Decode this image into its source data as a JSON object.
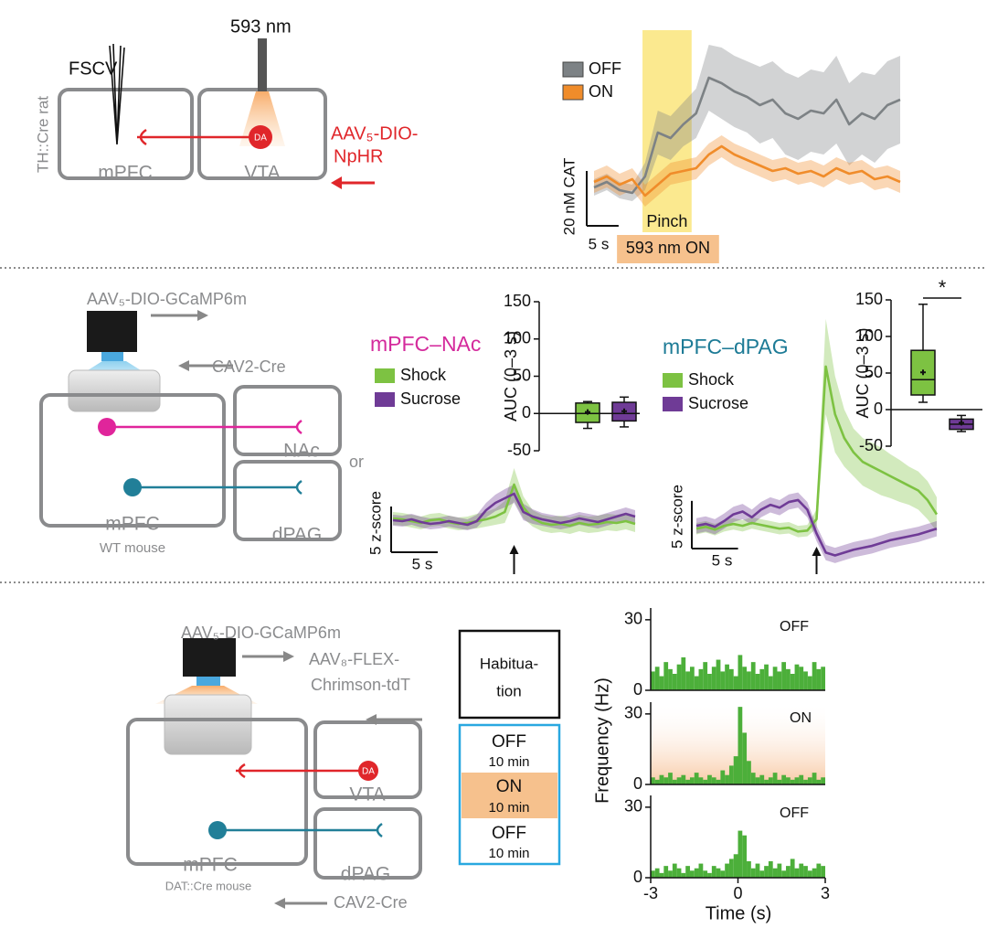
{
  "diagram_top": {
    "fscv": "FSCV",
    "laser": "593 nm",
    "animal": "TH::Cre rat",
    "regions": [
      "mPFC",
      "VTA"
    ],
    "cell": "DA",
    "virus": [
      "AAV₅-DIO-",
      "NpHR"
    ]
  },
  "diagram_middle": {
    "virus": "AAV₅-DIO-GCaMP6m",
    "retro": "CAV2-Cre",
    "regions": [
      "mPFC",
      "NAc",
      "dPAG"
    ],
    "animal": "WT mouse",
    "or": "or"
  },
  "diagram_bottom": {
    "virus": "AAV₅-DIO-GCaMP6m",
    "opsin": [
      "AAV₈-FLEX-",
      "Chrimson-tdT"
    ],
    "regions": [
      "mPFC",
      "VTA",
      "dPAG"
    ],
    "cell": "DA",
    "animal": "DAT::Cre mouse",
    "retro": "CAV2-Cre"
  },
  "protocol": {
    "habituation": [
      "Habitua-",
      "tion"
    ],
    "phases": [
      [
        "OFF",
        "10 min"
      ],
      [
        "ON",
        "10 min"
      ],
      [
        "OFF",
        "10 min"
      ]
    ]
  },
  "chart_data": [
    {
      "type": "line",
      "x": [
        0,
        2,
        4,
        6,
        8,
        10,
        12,
        14,
        16,
        18,
        20,
        22,
        24,
        26,
        28,
        30,
        32,
        34,
        36,
        38,
        40,
        42,
        44,
        46,
        48
      ],
      "xlim": [
        0,
        48
      ],
      "ylim": [
        -15,
        55
      ],
      "series": [
        {
          "name": "OFF",
          "color": "#7d8285",
          "values": [
            0,
            2,
            -1,
            -2,
            4,
            20,
            18,
            23,
            27,
            40,
            38,
            35,
            33,
            30,
            32,
            27,
            25,
            28,
            27,
            32,
            23,
            27,
            25,
            30,
            32
          ],
          "error": [
            3,
            3,
            3,
            3,
            5,
            8,
            8,
            8,
            9,
            12,
            13,
            13,
            13,
            14,
            14,
            15,
            15,
            15,
            15,
            16,
            15,
            15,
            16,
            16,
            16
          ]
        },
        {
          "name": "ON",
          "color": "#f08c2a",
          "values": [
            2,
            4,
            1,
            3,
            -3,
            1,
            5,
            6,
            7,
            12,
            15,
            12,
            10,
            8,
            6,
            7,
            5,
            6,
            4,
            7,
            5,
            6,
            3,
            4,
            2
          ],
          "error": [
            4,
            4,
            4,
            4,
            4,
            4,
            4,
            4,
            4,
            4,
            4,
            4,
            4,
            4,
            4,
            4,
            4,
            4,
            4,
            4,
            4,
            4,
            4,
            4,
            4
          ]
        }
      ],
      "legend": "upper left",
      "annotations": [
        {
          "label": "Pinch",
          "x": [
            7.6,
            15.3
          ],
          "color": "#fbe98f"
        },
        {
          "label": "593 nm ON",
          "x": [
            3.6,
            19.6
          ],
          "color": "#f6c18d"
        }
      ],
      "scale_bars": {
        "x": {
          "value": 5,
          "label": "5 s"
        },
        "y": {
          "value": 20,
          "label": "20 nM CAT"
        }
      }
    },
    {
      "type": "line",
      "title": "mPFC–NAc",
      "title_color": "#d42a9c",
      "x": [
        -13,
        -12,
        -11,
        -10,
        -9,
        -8,
        -7,
        -6,
        -5,
        -4,
        -3,
        -2,
        -1,
        0,
        1,
        2,
        3,
        4,
        5,
        6,
        7,
        8,
        9,
        10,
        11,
        12,
        13
      ],
      "xlim": [
        -13,
        13
      ],
      "ylim": [
        -3.5,
        10
      ],
      "series": [
        {
          "name": "Shock",
          "color": "#7dc242",
          "values": [
            0.3,
            0.2,
            0,
            -0.2,
            0.1,
            0.2,
            -0.1,
            -0.3,
            -0.2,
            0,
            0.2,
            0.5,
            1,
            4,
            1.5,
            0.3,
            -0.2,
            -0.4,
            -0.3,
            -0.5,
            -0.2,
            -0.4,
            -0.3,
            -0.1,
            -0.2,
            0,
            -0.3
          ],
          "error": [
            0.7,
            0.7,
            0.7,
            0.7,
            0.7,
            0.7,
            0.7,
            0.7,
            0.7,
            0.8,
            0.8,
            0.9,
            1.2,
            1.8,
            1.2,
            0.9,
            0.9,
            0.9,
            0.9,
            0.9,
            0.9,
            0.9,
            0.9,
            0.9,
            0.9,
            0.9,
            0.9
          ]
        },
        {
          "name": "Sucrose",
          "color": "#6f3b96",
          "values": [
            0.1,
            0,
            0.2,
            -0.1,
            -0.3,
            -0.2,
            0,
            -0.2,
            -0.4,
            0,
            1.2,
            2,
            2.5,
            3,
            1,
            0.5,
            0.2,
            0,
            -0.2,
            0,
            0.3,
            0.1,
            -0.1,
            0.2,
            0.5,
            0.8,
            0.5
          ],
          "error": [
            0.6,
            0.6,
            0.6,
            0.6,
            0.6,
            0.6,
            0.6,
            0.6,
            0.6,
            0.7,
            0.8,
            0.9,
            1,
            1,
            0.9,
            0.8,
            0.7,
            0.7,
            0.7,
            0.7,
            0.7,
            0.7,
            0.7,
            0.7,
            0.7,
            0.7,
            0.7
          ]
        }
      ],
      "legend": "upper left",
      "arrow_x": 0,
      "scale_bars": {
        "x": {
          "value": 5,
          "label": "5 s"
        },
        "y": {
          "value": 5,
          "label": "5 z-score"
        }
      }
    },
    {
      "type": "box",
      "ylabel": "AUC (0–3 s)",
      "ylim": [
        -50,
        150
      ],
      "yticks": [
        -50,
        0,
        50,
        100,
        150
      ],
      "series": [
        {
          "color": "#7dc242",
          "whislo": -20,
          "q1": -12,
          "median": 0,
          "q3": 14,
          "whishi": 16,
          "mean": 2
        },
        {
          "color": "#6f3b96",
          "whislo": -18,
          "q1": -10,
          "median": 0,
          "q3": 15,
          "whishi": 22,
          "mean": 3
        }
      ]
    },
    {
      "type": "line",
      "title": "mPFC–dPAG",
      "title_color": "#1d7b96",
      "x": [
        -13,
        -12,
        -11,
        -10,
        -9,
        -8,
        -7,
        -6,
        -5,
        -4,
        -3,
        -2,
        -1,
        0,
        1,
        2,
        3,
        4,
        5,
        6,
        7,
        8,
        9,
        10,
        11,
        12,
        13
      ],
      "xlim": [
        -13,
        13
      ],
      "ylim": [
        -4,
        19
      ],
      "series": [
        {
          "name": "Shock",
          "color": "#7dc242",
          "values": [
            0,
            0.2,
            -0.1,
            0.3,
            0.5,
            0.3,
            0.6,
            0.4,
            0.2,
            0,
            0.1,
            -0.3,
            -0.2,
            1,
            17,
            12,
            9.5,
            8,
            7,
            6.5,
            6,
            5.5,
            5,
            4.5,
            4,
            3,
            1.5
          ],
          "error": [
            0.6,
            0.6,
            0.6,
            0.6,
            0.6,
            0.6,
            0.6,
            0.6,
            0.6,
            0.6,
            0.6,
            0.6,
            0.6,
            1,
            5,
            4,
            3,
            2.5,
            2.5,
            2.5,
            2.5,
            2.3,
            2.2,
            2,
            2,
            2,
            1.8
          ]
        },
        {
          "name": "Sucrose",
          "color": "#6f3b96",
          "values": [
            0.3,
            0.5,
            0.2,
            0.8,
            1.5,
            1.8,
            1.2,
            2,
            2.5,
            2.2,
            2.8,
            3,
            2,
            -0.5,
            -2.5,
            -2.8,
            -2.5,
            -2.2,
            -2,
            -1.8,
            -1.5,
            -1.2,
            -1,
            -0.8,
            -0.6,
            -0.3,
            0
          ],
          "error": [
            0.8,
            0.8,
            0.8,
            0.8,
            0.8,
            0.8,
            0.8,
            0.8,
            0.8,
            0.8,
            0.8,
            0.8,
            0.8,
            0.8,
            0.8,
            0.8,
            0.8,
            0.8,
            0.8,
            0.8,
            0.8,
            0.8,
            0.8,
            0.8,
            0.8,
            0.8,
            0.8
          ]
        }
      ],
      "legend": "upper left",
      "arrow_x": 0,
      "scale_bars": {
        "x": {
          "value": 5,
          "label": "5 s"
        },
        "y": {
          "value": 5,
          "label": "5 z-score"
        }
      }
    },
    {
      "type": "box",
      "ylabel": "AUC (0–3 s)",
      "ylim": [
        -50,
        150
      ],
      "yticks": [
        -50,
        0,
        50,
        100,
        150
      ],
      "significance": "*",
      "series": [
        {
          "color": "#7dc242",
          "whislo": 10,
          "q1": 20,
          "median": 41,
          "q3": 81,
          "whishi": 144,
          "mean": 51
        },
        {
          "color": "#6f3b96",
          "whislo": -30,
          "q1": -27,
          "median": -20,
          "q3": -13,
          "whishi": -8,
          "mean": -18
        }
      ]
    },
    {
      "type": "histogram",
      "label": "OFF",
      "color": "#4caf3a",
      "xlim": [
        -3,
        3
      ],
      "ylim": [
        0,
        35
      ],
      "yticks": [
        0,
        30
      ],
      "bins": [
        -3,
        -2.85,
        -2.7,
        -2.55,
        -2.4,
        -2.25,
        -2.1,
        -1.95,
        -1.8,
        -1.65,
        -1.5,
        -1.35,
        -1.2,
        -1.05,
        -0.9,
        -0.75,
        -0.6,
        -0.45,
        -0.3,
        -0.15,
        0,
        0.15,
        0.3,
        0.45,
        0.6,
        0.75,
        0.9,
        1.05,
        1.2,
        1.35,
        1.5,
        1.65,
        1.8,
        1.95,
        2.1,
        2.25,
        2.4,
        2.55,
        2.7,
        2.85,
        3
      ],
      "counts": [
        8,
        10,
        6,
        12,
        9,
        7,
        11,
        14,
        8,
        10,
        6,
        9,
        12,
        7,
        10,
        13,
        8,
        11,
        9,
        6,
        15,
        10,
        8,
        12,
        7,
        9,
        11,
        6,
        10,
        8,
        12,
        9,
        7,
        11,
        10,
        8,
        6,
        12,
        9,
        10
      ]
    },
    {
      "type": "histogram",
      "label": "ON",
      "color": "#4caf3a",
      "shade": "#f8c9a4",
      "ylabel": "Frequency (Hz)",
      "xlim": [
        -3,
        3
      ],
      "ylim": [
        0,
        35
      ],
      "yticks": [
        0,
        30
      ],
      "bins": [
        -3,
        -2.85,
        -2.7,
        -2.55,
        -2.4,
        -2.25,
        -2.1,
        -1.95,
        -1.8,
        -1.65,
        -1.5,
        -1.35,
        -1.2,
        -1.05,
        -0.9,
        -0.75,
        -0.6,
        -0.45,
        -0.3,
        -0.15,
        0,
        0.15,
        0.3,
        0.45,
        0.6,
        0.75,
        0.9,
        1.05,
        1.2,
        1.35,
        1.5,
        1.65,
        1.8,
        1.95,
        2.1,
        2.25,
        2.4,
        2.55,
        2.7,
        2.85,
        3
      ],
      "counts": [
        3,
        2,
        4,
        3,
        5,
        2,
        3,
        4,
        2,
        3,
        5,
        3,
        2,
        4,
        3,
        2,
        6,
        4,
        8,
        12,
        33,
        22,
        10,
        5,
        3,
        4,
        2,
        3,
        5,
        2,
        4,
        3,
        2,
        3,
        4,
        2,
        3,
        5,
        2,
        3
      ]
    },
    {
      "type": "histogram",
      "label": "OFF",
      "color": "#4caf3a",
      "xlabel": "Time (s)",
      "xlim": [
        -3,
        3
      ],
      "ylim": [
        0,
        35
      ],
      "yticks": [
        0,
        30
      ],
      "xticks": [
        -3,
        0,
        3
      ],
      "bins": [
        -3,
        -2.85,
        -2.7,
        -2.55,
        -2.4,
        -2.25,
        -2.1,
        -1.95,
        -1.8,
        -1.65,
        -1.5,
        -1.35,
        -1.2,
        -1.05,
        -0.9,
        -0.75,
        -0.6,
        -0.45,
        -0.3,
        -0.15,
        0,
        0.15,
        0.3,
        0.45,
        0.6,
        0.75,
        0.9,
        1.05,
        1.2,
        1.35,
        1.5,
        1.65,
        1.8,
        1.95,
        2.1,
        2.25,
        2.4,
        2.55,
        2.7,
        2.85,
        3
      ],
      "counts": [
        3,
        4,
        2,
        5,
        3,
        6,
        4,
        2,
        5,
        3,
        4,
        6,
        3,
        2,
        5,
        4,
        3,
        6,
        8,
        10,
        20,
        18,
        7,
        4,
        6,
        3,
        5,
        7,
        4,
        6,
        3,
        5,
        8,
        4,
        6,
        5,
        3,
        4,
        6,
        5
      ]
    }
  ]
}
